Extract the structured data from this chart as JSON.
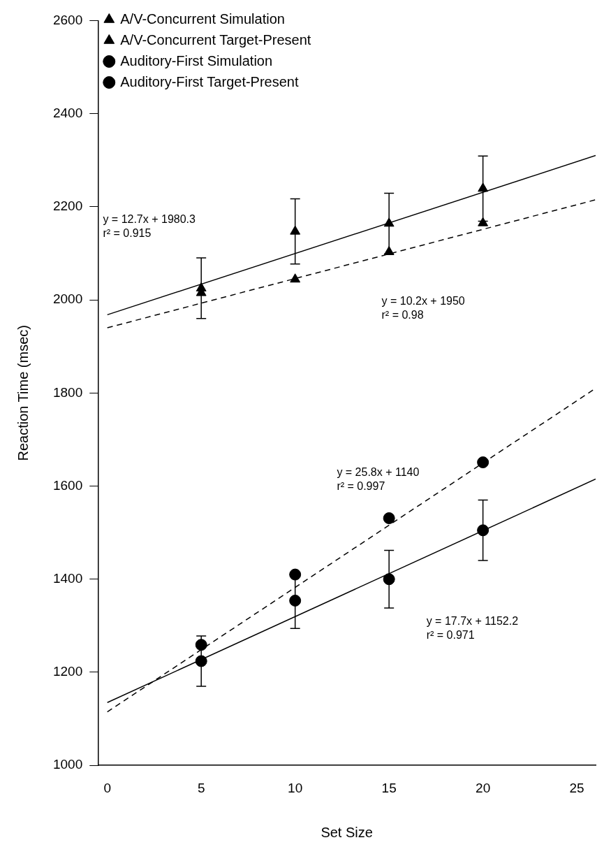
{
  "chart_data": {
    "type": "scatter",
    "xlabel": "Set Size",
    "ylabel": "Reaction Time (msec)",
    "xlim": [
      -0.5,
      26
    ],
    "xticks": [
      0,
      5,
      10,
      15,
      20,
      25
    ],
    "ylim": [
      1000,
      2600
    ],
    "yticks": [
      1000,
      1200,
      1400,
      1600,
      1800,
      2000,
      2200,
      2400,
      2600
    ],
    "grid": false,
    "legend": "top left",
    "series": [
      {
        "name": "A/V-Concurrent Simulation",
        "marker": "triangle",
        "color": "#000000",
        "x": [
          5,
          10,
          15,
          20
        ],
        "values": [
          2015,
          2044,
          2103,
          2165
        ]
      },
      {
        "name": "A/V-Concurrent Target-Present",
        "marker": "triangle",
        "color": "#000000",
        "x": [
          5,
          10,
          15,
          20
        ],
        "values": [
          2025,
          2147,
          2164,
          2239
        ],
        "errors": [
          65,
          70,
          65,
          70
        ]
      },
      {
        "name": "Auditory-First Simulation",
        "marker": "circle",
        "color": "#000000",
        "x": [
          5,
          10,
          15,
          20
        ],
        "values": [
          1259,
          1410,
          1531,
          1651
        ]
      },
      {
        "name": "Auditory-First Target-Present",
        "marker": "circle",
        "color": "#000000",
        "x": [
          5,
          10,
          15,
          20
        ],
        "values": [
          1224,
          1354,
          1400,
          1505
        ],
        "errors": [
          54,
          60,
          62,
          65
        ]
      },
      {
        "type": "line",
        "line_style": "solid",
        "marker": "none",
        "color": "#000000",
        "x": [
          0,
          26
        ],
        "values": [
          1968,
          2310
        ]
      },
      {
        "type": "line",
        "line_style": "dashed",
        "marker": "none",
        "color": "#000000",
        "x": [
          0,
          26
        ],
        "values": [
          1940,
          2215
        ]
      },
      {
        "type": "line",
        "line_style": "dashed",
        "marker": "none",
        "color": "#000000",
        "x": [
          0,
          26
        ],
        "values": [
          1115,
          1810
        ]
      },
      {
        "type": "line",
        "line_style": "solid",
        "marker": "none",
        "color": "#000000",
        "x": [
          0,
          26
        ],
        "values": [
          1135,
          1615
        ]
      }
    ],
    "annotations": [
      "y = 12.7x + 1980.3\nr² = 0.915",
      "y = 10.2x + 1950\nr² = 0.98",
      "y = 25.8x + 1140\nr² = 0.997",
      "y = 17.7x + 1152.2\nr² = 0.971"
    ]
  }
}
